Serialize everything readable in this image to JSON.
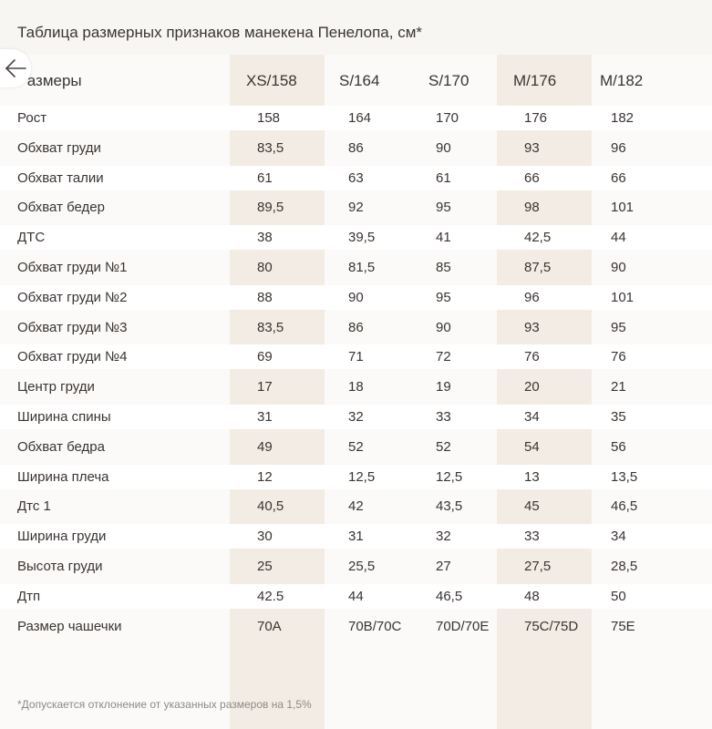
{
  "title": "Таблица размерных признаков манекена Пенелопа, см*",
  "header": {
    "label": "Размеры",
    "sizes": [
      "XS/158",
      "S/164",
      "S/170",
      "M/176",
      "M/182"
    ]
  },
  "rows": [
    {
      "name": "Рост",
      "values": [
        "158",
        "164",
        "170",
        "176",
        "182"
      ]
    },
    {
      "name": "Обхват груди",
      "values": [
        "83,5",
        "86",
        "90",
        "93",
        "96"
      ]
    },
    {
      "name": "Обхват талии",
      "values": [
        "61",
        "63",
        "61",
        "66",
        "66"
      ]
    },
    {
      "name": "Обхват бедер",
      "values": [
        "89,5",
        "92",
        "95",
        "98",
        "101"
      ]
    },
    {
      "name": "ДТС",
      "values": [
        "38",
        "39,5",
        "41",
        "42,5",
        "44"
      ]
    },
    {
      "name": "Обхват груди №1",
      "values": [
        "80",
        "81,5",
        "85",
        "87,5",
        "90"
      ]
    },
    {
      "name": "Обхват груди №2",
      "values": [
        "88",
        "90",
        "95",
        "96",
        "101"
      ]
    },
    {
      "name": "Обхват груди №3",
      "values": [
        "83,5",
        "86",
        "90",
        "93",
        "95"
      ]
    },
    {
      "name": "Обхват груди №4",
      "values": [
        "69",
        "71",
        "72",
        "76",
        "76"
      ]
    },
    {
      "name": "Центр груди",
      "values": [
        "17",
        "18",
        "19",
        "20",
        "21"
      ]
    },
    {
      "name": "Ширина спины",
      "values": [
        "31",
        "32",
        "33",
        "34",
        "35"
      ]
    },
    {
      "name": "Обхват бедра",
      "values": [
        "49",
        "52",
        "52",
        "54",
        "56"
      ]
    },
    {
      "name": "Ширина плеча",
      "values": [
        "12",
        "12,5",
        "12,5",
        "13",
        "13,5"
      ]
    },
    {
      "name": "Дтс 1",
      "values": [
        "40,5",
        "42",
        "43,5",
        "45",
        "46,5"
      ]
    },
    {
      "name": "Ширина груди",
      "values": [
        "30",
        "31",
        "32",
        "33",
        "34"
      ]
    },
    {
      "name": "Высота груди",
      "values": [
        "25",
        "25,5",
        "27",
        "27,5",
        "28,5"
      ]
    },
    {
      "name": "Дтп",
      "values": [
        "42.5",
        "44",
        "46,5",
        "48",
        "50"
      ]
    },
    {
      "name": "Размер чашечки",
      "values": [
        "70A",
        "70B/70C",
        "70D/70E",
        "75C/75D",
        "75E"
      ]
    }
  ],
  "footnote": "*Допускается отклонение от указанных размеров на 1,5%",
  "icons": {
    "back": "arrow-left-icon"
  },
  "colors": {
    "highlight_column": "#f3ece4",
    "text": "#3a3431"
  }
}
